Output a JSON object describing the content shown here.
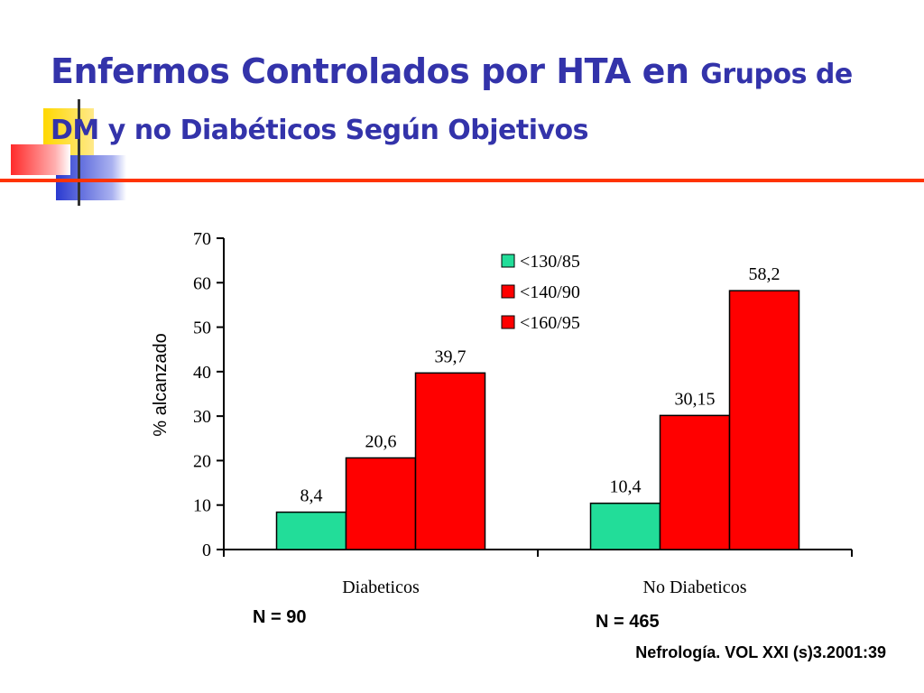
{
  "slide": {
    "title_part1": "Enfermos Controlados por HTA en",
    "title_part2": "Grupos de DM y no Diabéticos Según Objetivos",
    "colors": {
      "title": "#3333aa",
      "rule": "#ff3300"
    }
  },
  "chart_data": {
    "type": "bar",
    "categories": [
      "Diabeticos",
      "No Diabeticos"
    ],
    "series": [
      {
        "name": "<130/85",
        "values": [
          8.4,
          10.4
        ],
        "labels": [
          "8,4",
          "10,4"
        ],
        "color": "#22dd99"
      },
      {
        "name": "<140/90",
        "values": [
          20.6,
          30.15
        ],
        "labels": [
          "20,6",
          "30,15"
        ],
        "color": "#ff0000"
      },
      {
        "name": "<160/95",
        "values": [
          39.7,
          58.2
        ],
        "labels": [
          "39,7",
          "58,2"
        ],
        "color": "#ff0000"
      }
    ],
    "ylabel": "% alcanzado",
    "ylim": [
      0,
      70
    ],
    "yticks": [
      0,
      10,
      20,
      30,
      40,
      50,
      60,
      70
    ],
    "grid": false,
    "legend_position": "top-right"
  },
  "annotations": {
    "n_diabeticos": "N = 90",
    "n_no_diabeticos": "N = 465",
    "source": "Nefrología. VOL XXI (s)3.2001:39"
  }
}
